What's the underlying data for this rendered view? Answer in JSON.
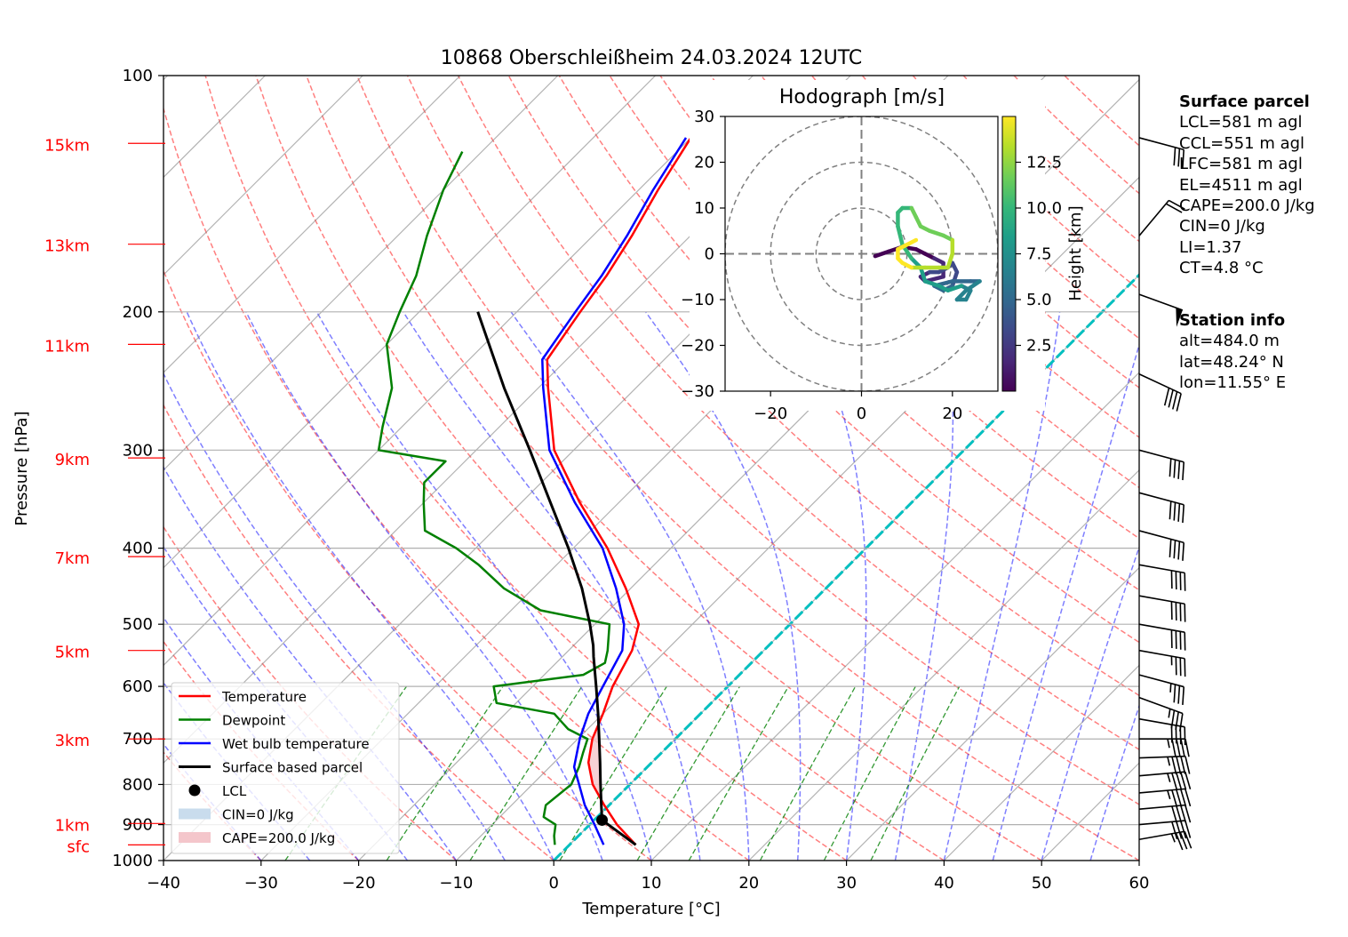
{
  "chart_data": [
    {
      "type": "line",
      "title": "10868 Oberschleißheim 24.03.2024 12UTC",
      "xlabel": "Temperature [°C]",
      "ylabel": "Pressure [hPa]",
      "xlim": [
        -40,
        60
      ],
      "ylim": [
        1000,
        100
      ],
      "log_y": true,
      "skew": true,
      "grid": true,
      "x_ticks": [
        -40,
        -30,
        -20,
        -10,
        0,
        10,
        20,
        30,
        40,
        50,
        60
      ],
      "x_tick_labels": [
        "−40",
        "−30",
        "−20",
        "−10",
        "0",
        "10",
        "20",
        "30",
        "40",
        "50",
        "60"
      ],
      "y_ticks": [
        1000,
        900,
        800,
        700,
        600,
        500,
        400,
        300,
        200,
        100
      ],
      "height_labels": [
        {
          "label": "sfc",
          "p": 955
        },
        {
          "label": "1km",
          "p": 897
        },
        {
          "label": "3km",
          "p": 700
        },
        {
          "label": "5km",
          "p": 540
        },
        {
          "label": "7km",
          "p": 410
        },
        {
          "label": "9km",
          "p": 307
        },
        {
          "label": "11km",
          "p": 220
        },
        {
          "label": "13km",
          "p": 164
        },
        {
          "label": "15km",
          "p": 122
        }
      ],
      "legend_position": "lower-left",
      "legend": [
        "Temperature",
        "Dewpoint",
        "Wet bulb temperature",
        "Surface based parcel",
        "LCL",
        "CIN=0 J/kg",
        "CAPE=200.0 J/kg"
      ],
      "series": [
        {
          "name": "Temperature",
          "color": "#ff0000",
          "points": [
            [
              955,
              6.8
            ],
            [
              900,
              2.8
            ],
            [
              850,
              -0.5
            ],
            [
              800,
              -3.8
            ],
            [
              750,
              -6.5
            ],
            [
              700,
              -8.5
            ],
            [
              650,
              -10
            ],
            [
              600,
              -11.8
            ],
            [
              540,
              -13.5
            ],
            [
              500,
              -15.5
            ],
            [
              450,
              -20.5
            ],
            [
              400,
              -26.5
            ],
            [
              350,
              -34
            ],
            [
              300,
              -42
            ],
            [
              250,
              -49
            ],
            [
              230,
              -52
            ],
            [
              200,
              -53.5
            ],
            [
              180,
              -54.5
            ],
            [
              160,
              -56
            ],
            [
              140,
              -58
            ],
            [
              120,
              -60
            ]
          ]
        },
        {
          "name": "Dewpoint",
          "color": "#008000",
          "points": [
            [
              955,
              -1.5
            ],
            [
              930,
              -2.5
            ],
            [
              900,
              -3.5
            ],
            [
              880,
              -5.5
            ],
            [
              850,
              -6.5
            ],
            [
              800,
              -6
            ],
            [
              760,
              -7
            ],
            [
              730,
              -8
            ],
            [
              700,
              -9
            ],
            [
              680,
              -12
            ],
            [
              650,
              -15
            ],
            [
              630,
              -22
            ],
            [
              600,
              -24
            ],
            [
              580,
              -16
            ],
            [
              560,
              -15
            ],
            [
              540,
              -16
            ],
            [
              500,
              -18.5
            ],
            [
              480,
              -27
            ],
            [
              450,
              -33
            ],
            [
              420,
              -38
            ],
            [
              400,
              -42
            ],
            [
              380,
              -47
            ],
            [
              350,
              -50
            ],
            [
              330,
              -52
            ],
            [
              310,
              -52
            ],
            [
              300,
              -60
            ],
            [
              280,
              -62
            ],
            [
              250,
              -65
            ],
            [
              220,
              -70
            ],
            [
              200,
              -72
            ],
            [
              180,
              -74
            ],
            [
              160,
              -77
            ],
            [
              140,
              -80
            ],
            [
              125,
              -82
            ]
          ]
        },
        {
          "name": "Wet bulb temperature",
          "color": "#0000ff",
          "points": [
            [
              955,
              3.5
            ],
            [
              900,
              0.5
            ],
            [
              850,
              -2.5
            ],
            [
              800,
              -5.2
            ],
            [
              760,
              -7.5
            ],
            [
              700,
              -9.8
            ],
            [
              650,
              -11.5
            ],
            [
              600,
              -12.8
            ],
            [
              540,
              -14.5
            ],
            [
              500,
              -17
            ],
            [
              450,
              -21.5
            ],
            [
              400,
              -27
            ],
            [
              350,
              -34.5
            ],
            [
              300,
              -42.5
            ],
            [
              250,
              -49.5
            ],
            [
              230,
              -52.5
            ],
            [
              200,
              -54
            ],
            [
              180,
              -55
            ],
            [
              160,
              -56.5
            ],
            [
              140,
              -58.5
            ],
            [
              120,
              -60.5
            ]
          ]
        },
        {
          "name": "Surface based parcel",
          "color": "#000000",
          "points": [
            [
              955,
              6.8
            ],
            [
              888,
              0.8
            ],
            [
              850,
              -0.8
            ],
            [
              800,
              -3
            ],
            [
              750,
              -5.3
            ],
            [
              700,
              -7.8
            ],
            [
              650,
              -10.5
            ],
            [
              600,
              -13.5
            ],
            [
              550,
              -16.8
            ],
            [
              532,
              -18
            ],
            [
              500,
              -20.5
            ],
            [
              450,
              -25
            ],
            [
              400,
              -30.5
            ],
            [
              350,
              -37
            ],
            [
              300,
              -44.5
            ],
            [
              250,
              -53.5
            ],
            [
              200,
              -64
            ]
          ]
        }
      ],
      "lcl": {
        "p": 888,
        "t": 0.8
      },
      "cape_shading": {
        "label": "CAPE=200.0 J/kg",
        "color": "#f4c6cb"
      },
      "cin_shading": {
        "label": "CIN=0 J/kg",
        "color": "#c9dced"
      },
      "wind_barbs_note": "wind barbs on right edge",
      "wind_barbs": [
        {
          "p": 940,
          "speed": 35,
          "dir": 260
        },
        {
          "p": 900,
          "speed": 40,
          "dir": 265
        },
        {
          "p": 860,
          "speed": 40,
          "dir": 265
        },
        {
          "p": 820,
          "speed": 45,
          "dir": 265
        },
        {
          "p": 780,
          "speed": 45,
          "dir": 265
        },
        {
          "p": 740,
          "speed": 45,
          "dir": 268
        },
        {
          "p": 700,
          "speed": 45,
          "dir": 270
        },
        {
          "p": 660,
          "speed": 40,
          "dir": 280
        },
        {
          "p": 620,
          "speed": 35,
          "dir": 290
        },
        {
          "p": 580,
          "speed": 35,
          "dir": 285
        },
        {
          "p": 540,
          "speed": 35,
          "dir": 280
        },
        {
          "p": 500,
          "speed": 40,
          "dir": 280
        },
        {
          "p": 460,
          "speed": 40,
          "dir": 280
        },
        {
          "p": 420,
          "speed": 40,
          "dir": 280
        },
        {
          "p": 380,
          "speed": 40,
          "dir": 285
        },
        {
          "p": 340,
          "speed": 40,
          "dir": 285
        },
        {
          "p": 300,
          "speed": 40,
          "dir": 285
        },
        {
          "p": 240,
          "speed": 40,
          "dir": 295
        },
        {
          "p": 190,
          "speed": 50,
          "dir": 290
        },
        {
          "p": 160,
          "speed": 20,
          "dir": 220
        },
        {
          "p": 120,
          "speed": 30,
          "dir": 285
        }
      ]
    },
    {
      "type": "line",
      "title": "Hodograph [m/s]",
      "xlim": [
        -30,
        30
      ],
      "ylim": [
        -30,
        30
      ],
      "x_ticks": [
        -20,
        0,
        20
      ],
      "x_tick_labels": [
        "−20",
        "0",
        "20"
      ],
      "y_ticks": [
        30,
        20,
        10,
        0,
        -10,
        -20,
        -30
      ],
      "y_tick_labels": [
        "30",
        "20",
        "10",
        "0",
        "−10",
        "−20",
        "−30"
      ],
      "rings": [
        10,
        20,
        30
      ],
      "colorbar": {
        "label": "Height [km]",
        "ticks": [
          "2.5",
          "5.0",
          "7.5",
          "10.0",
          "12.5"
        ],
        "range": [
          0,
          15
        ]
      },
      "points": [
        [
          3,
          -0.5
        ],
        [
          6,
          0.5
        ],
        [
          9,
          1.5
        ],
        [
          12,
          1
        ],
        [
          14,
          0
        ],
        [
          16,
          -1
        ],
        [
          18,
          -2
        ],
        [
          18,
          -5
        ],
        [
          14,
          -6
        ],
        [
          13,
          -5
        ],
        [
          15,
          -4
        ],
        [
          17,
          -4
        ],
        [
          19,
          -3
        ],
        [
          20,
          -2
        ],
        [
          21,
          -4
        ],
        [
          20,
          -7
        ],
        [
          18,
          -8
        ],
        [
          16,
          -7
        ],
        [
          20,
          -6
        ],
        [
          24,
          -6
        ],
        [
          26,
          -6
        ],
        [
          23,
          -8
        ],
        [
          21,
          -10
        ],
        [
          23,
          -10
        ],
        [
          24,
          -8
        ],
        [
          22,
          -7
        ],
        [
          19,
          -8
        ],
        [
          17,
          -7
        ],
        [
          14,
          -6
        ],
        [
          13,
          -3
        ],
        [
          11,
          -1
        ],
        [
          9,
          2
        ],
        [
          8,
          6
        ],
        [
          8,
          9
        ],
        [
          9,
          10
        ],
        [
          11,
          10
        ],
        [
          12,
          8
        ],
        [
          13,
          6
        ],
        [
          15,
          5
        ],
        [
          18,
          4
        ],
        [
          20,
          3
        ],
        [
          20,
          0
        ],
        [
          19,
          -3
        ],
        [
          17,
          -3
        ],
        [
          14,
          -3
        ],
        [
          11,
          -3
        ],
        [
          9,
          -2
        ],
        [
          8,
          -1
        ],
        [
          8,
          1
        ],
        [
          10,
          2
        ],
        [
          12,
          3
        ]
      ]
    }
  ],
  "sidebar": {
    "surface_title": "Surface parcel",
    "surface_lines": [
      "LCL=581 m agl",
      "CCL=551 m agl",
      "LFC=581 m agl",
      "EL=4511 m agl",
      "CAPE=200.0 J/kg",
      "CIN=0 J/kg",
      "LI=1.37",
      "CT=4.8 °C"
    ],
    "station_title": "Station info",
    "station_lines": [
      "alt=484.0 m",
      "lat=48.24° N",
      "lon=11.55° E"
    ]
  }
}
